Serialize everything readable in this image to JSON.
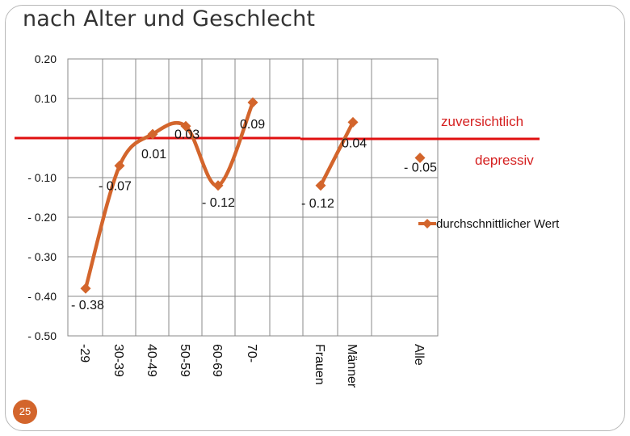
{
  "title": "nach Alter und Geschlecht",
  "page_number": "25",
  "chart_data": {
    "type": "line",
    "title": "nach Alter und Geschlecht",
    "xlabel": "",
    "ylabel": "",
    "ylim": [
      -0.5,
      0.2
    ],
    "yticks": [
      {
        "value": 0.2,
        "label": "0.20"
      },
      {
        "value": 0.1,
        "label": "0.10"
      },
      {
        "value": -0.1,
        "label": "- 0.10"
      },
      {
        "value": -0.2,
        "label": "- 0.20"
      },
      {
        "value": -0.3,
        "label": "- 0.30"
      },
      {
        "value": -0.4,
        "label": "- 0.40"
      },
      {
        "value": -0.5,
        "label": "- 0.50"
      }
    ],
    "categories": [
      "-29",
      "30-39",
      "40-49",
      "50-59",
      "60-69",
      "70-",
      "Frauen",
      "Männer",
      "Alle"
    ],
    "grid": true,
    "reference_line": {
      "value": 0.0,
      "color": "#e01010"
    },
    "legend": {
      "position": "right",
      "entries": [
        {
          "label": "zuversichtlich",
          "color": "#e01010"
        },
        {
          "label": "depressiv",
          "color": "#e01010"
        },
        {
          "label": "durchschnittlicher Wert",
          "color": "#d3652c"
        }
      ]
    },
    "series": [
      {
        "color": "#d3652c",
        "segments": [
          {
            "categories": [
              "-29",
              "30-39",
              "40-49",
              "50-59",
              "60-69",
              "70-"
            ],
            "values": [
              -0.38,
              -0.07,
              0.01,
              0.03,
              -0.12,
              0.09
            ]
          },
          {
            "categories": [
              "Frauen",
              "Männer"
            ],
            "values": [
              -0.12,
              0.04
            ]
          },
          {
            "categories": [
              "Alle"
            ],
            "values": [
              -0.05
            ]
          }
        ],
        "labels": [
          "- 0.38",
          "- 0.07",
          "0.01",
          "0.03",
          "- 0.12",
          "0.09",
          "- 0.12",
          "0.04",
          "- 0.05"
        ]
      }
    ]
  }
}
